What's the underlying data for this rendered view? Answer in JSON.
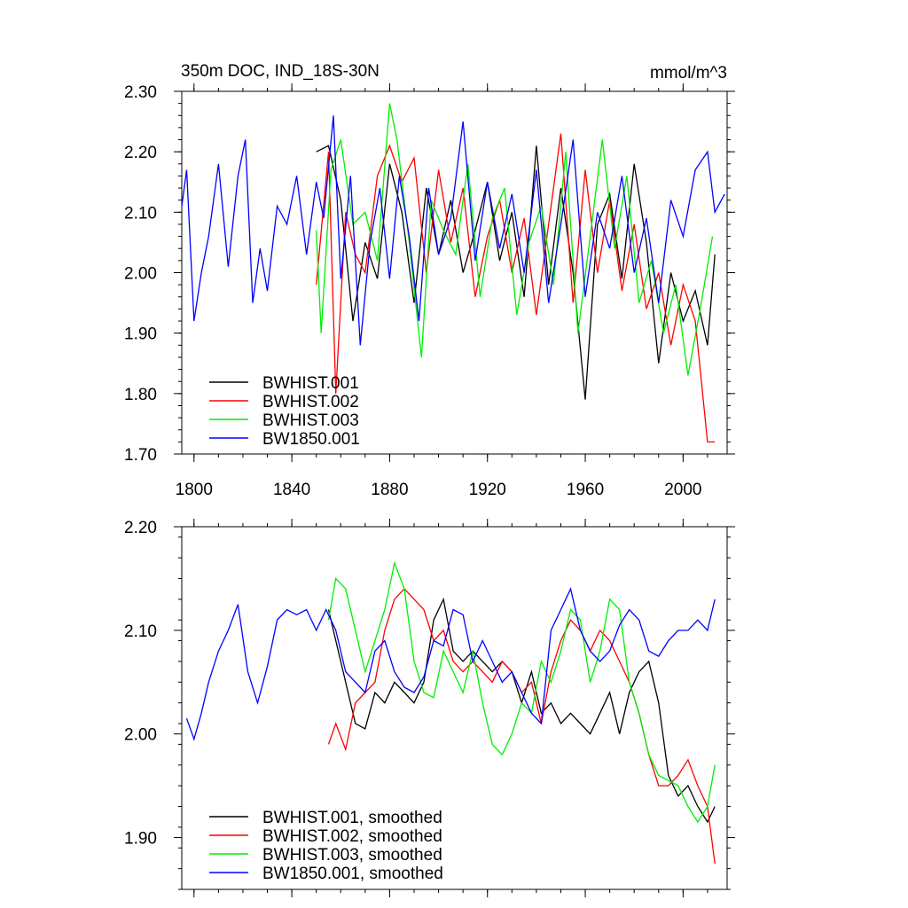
{
  "chart_data": [
    {
      "type": "line",
      "title": "350m DOC, IND_18S-30N",
      "units": "mmol/m^3",
      "xlabel": "",
      "ylabel": "",
      "xlim": [
        1795,
        2018
      ],
      "ylim": [
        1.7,
        2.3
      ],
      "xticks": [
        1800,
        1840,
        1880,
        1920,
        1960,
        2000
      ],
      "xtick_labels": [
        "1800",
        "1840",
        "1880",
        "1920",
        "1960",
        "2000"
      ],
      "yticks": [
        1.7,
        1.8,
        1.9,
        2.0,
        2.1,
        2.2,
        2.3
      ],
      "ytick_labels": [
        "1.70",
        "1.80",
        "1.90",
        "2.00",
        "2.10",
        "2.20",
        "2.30"
      ],
      "legend_position": "bottom-left",
      "series": [
        {
          "name": "BWHIST.001",
          "color": "#000000",
          "x": [
            1850,
            1855,
            1860,
            1865,
            1870,
            1875,
            1880,
            1885,
            1890,
            1895,
            1900,
            1905,
            1910,
            1915,
            1920,
            1925,
            1930,
            1935,
            1940,
            1945,
            1950,
            1955,
            1960,
            1965,
            1970,
            1975,
            1980,
            1985,
            1990,
            1995,
            2000,
            2005,
            2010,
            2013
          ],
          "values": [
            2.2,
            2.21,
            2.12,
            1.92,
            2.05,
            1.99,
            2.18,
            2.1,
            1.95,
            2.14,
            2.03,
            2.12,
            2.0,
            2.07,
            2.15,
            2.02,
            2.1,
            1.96,
            2.21,
            1.98,
            2.14,
            2.0,
            1.79,
            2.08,
            2.13,
            1.99,
            2.18,
            2.05,
            1.85,
            2.0,
            1.92,
            1.97,
            1.88,
            2.03
          ]
        },
        {
          "name": "BWHIST.002",
          "color": "#ff0000",
          "x": [
            1850,
            1855,
            1858,
            1862,
            1866,
            1870,
            1875,
            1880,
            1885,
            1890,
            1895,
            1900,
            1905,
            1910,
            1915,
            1920,
            1925,
            1930,
            1935,
            1940,
            1945,
            1950,
            1955,
            1960,
            1965,
            1970,
            1975,
            1980,
            1985,
            1990,
            1995,
            2000,
            2005,
            2010,
            2013
          ],
          "values": [
            1.98,
            2.2,
            1.8,
            2.1,
            2.03,
            2.0,
            2.16,
            2.21,
            2.15,
            2.19,
            2.0,
            2.17,
            2.05,
            2.14,
            1.96,
            2.06,
            2.12,
            2.0,
            2.09,
            1.93,
            2.08,
            2.23,
            1.95,
            2.17,
            2.0,
            2.12,
            1.97,
            2.08,
            1.94,
            2.0,
            1.88,
            1.98,
            1.92,
            1.72,
            1.72
          ]
        },
        {
          "name": "BWHIST.003",
          "color": "#00ee00",
          "x": [
            1850,
            1852,
            1856,
            1860,
            1865,
            1870,
            1875,
            1880,
            1883,
            1888,
            1893,
            1897,
            1902,
            1907,
            1912,
            1917,
            1922,
            1927,
            1932,
            1937,
            1942,
            1947,
            1952,
            1957,
            1962,
            1967,
            1972,
            1977,
            1982,
            1987,
            1992,
            1997,
            2002,
            2007,
            2012
          ],
          "values": [
            2.07,
            1.9,
            2.17,
            2.22,
            2.08,
            2.1,
            2.02,
            2.28,
            2.22,
            2.05,
            1.86,
            2.12,
            2.07,
            2.03,
            2.18,
            1.96,
            2.09,
            2.14,
            1.93,
            2.05,
            2.11,
            1.98,
            2.2,
            1.9,
            2.06,
            2.22,
            2.04,
            2.16,
            1.95,
            2.02,
            1.9,
            1.98,
            1.83,
            1.94,
            2.06
          ]
        },
        {
          "name": "BW1850.001",
          "color": "#0000ff",
          "x": [
            1795,
            1797,
            1800,
            1803,
            1806,
            1810,
            1814,
            1818,
            1821,
            1824,
            1827,
            1830,
            1834,
            1838,
            1842,
            1846,
            1850,
            1853,
            1857,
            1860,
            1864,
            1868,
            1872,
            1876,
            1880,
            1884,
            1888,
            1892,
            1896,
            1900,
            1905,
            1910,
            1915,
            1920,
            1925,
            1930,
            1935,
            1940,
            1945,
            1950,
            1955,
            1960,
            1965,
            1970,
            1975,
            1980,
            1985,
            1990,
            1995,
            2000,
            2005,
            2010,
            2013,
            2017
          ],
          "values": [
            2.11,
            2.17,
            1.92,
            2.0,
            2.06,
            2.18,
            2.01,
            2.16,
            2.22,
            1.95,
            2.04,
            1.97,
            2.11,
            2.08,
            2.16,
            2.03,
            2.15,
            2.09,
            2.26,
            1.99,
            2.16,
            1.88,
            2.05,
            2.14,
            1.99,
            2.16,
            2.06,
            1.92,
            2.14,
            2.03,
            2.09,
            2.25,
            2.02,
            2.15,
            2.04,
            2.13,
            2.0,
            2.17,
            1.95,
            2.08,
            2.22,
            1.96,
            2.1,
            2.04,
            2.16,
            2.0,
            2.09,
            1.95,
            2.12,
            2.06,
            2.17,
            2.2,
            2.1,
            2.13
          ]
        }
      ]
    },
    {
      "type": "line",
      "title": "",
      "xlabel": "",
      "ylabel": "",
      "xlim": [
        1795,
        2018
      ],
      "ylim": [
        1.85,
        2.2
      ],
      "xticks": [
        1800,
        1840,
        1880,
        1920,
        1960,
        2000
      ],
      "xtick_labels": [
        "",
        "",
        "",
        "",
        "",
        ""
      ],
      "yticks": [
        1.9,
        2.0,
        2.1,
        2.2
      ],
      "ytick_labels": [
        "1.90",
        "2.00",
        "2.10",
        "2.20"
      ],
      "legend_position": "bottom-left",
      "series": [
        {
          "name": "BWHIST.001, smoothed",
          "color": "#000000",
          "x": [
            1855,
            1858,
            1862,
            1866,
            1870,
            1874,
            1878,
            1882,
            1886,
            1890,
            1894,
            1898,
            1902,
            1906,
            1910,
            1914,
            1918,
            1922,
            1926,
            1930,
            1934,
            1938,
            1942,
            1946,
            1950,
            1954,
            1958,
            1962,
            1966,
            1970,
            1974,
            1978,
            1982,
            1986,
            1990,
            1994,
            1998,
            2002,
            2006,
            2010,
            2013
          ],
          "values": [
            2.12,
            2.09,
            2.05,
            2.01,
            2.005,
            2.04,
            2.03,
            2.05,
            2.04,
            2.03,
            2.05,
            2.11,
            2.13,
            2.08,
            2.07,
            2.08,
            2.07,
            2.06,
            2.07,
            2.06,
            2.03,
            2.06,
            2.02,
            2.03,
            2.01,
            2.02,
            2.01,
            2.0,
            2.02,
            2.04,
            2.0,
            2.04,
            2.06,
            2.07,
            2.03,
            1.96,
            1.94,
            1.95,
            1.93,
            1.915,
            1.93
          ]
        },
        {
          "name": "BWHIST.002, smoothed",
          "color": "#ff0000",
          "x": [
            1855,
            1858,
            1862,
            1866,
            1870,
            1874,
            1878,
            1882,
            1886,
            1890,
            1894,
            1898,
            1902,
            1906,
            1910,
            1914,
            1918,
            1922,
            1926,
            1930,
            1934,
            1938,
            1942,
            1946,
            1950,
            1954,
            1958,
            1962,
            1966,
            1970,
            1974,
            1978,
            1982,
            1986,
            1990,
            1994,
            1998,
            2002,
            2006,
            2010,
            2013
          ],
          "values": [
            1.99,
            2.01,
            1.985,
            2.03,
            2.04,
            2.05,
            2.1,
            2.13,
            2.14,
            2.13,
            2.12,
            2.09,
            2.1,
            2.07,
            2.06,
            2.07,
            2.06,
            2.05,
            2.07,
            2.06,
            2.04,
            2.05,
            2.01,
            2.06,
            2.09,
            2.11,
            2.1,
            2.08,
            2.1,
            2.09,
            2.07,
            2.05,
            2.02,
            1.98,
            1.95,
            1.95,
            1.96,
            1.975,
            1.95,
            1.93,
            1.875
          ]
        },
        {
          "name": "BWHIST.003, smoothed",
          "color": "#00ee00",
          "x": [
            1855,
            1858,
            1862,
            1866,
            1870,
            1874,
            1878,
            1882,
            1886,
            1890,
            1894,
            1898,
            1902,
            1906,
            1910,
            1914,
            1918,
            1922,
            1926,
            1930,
            1934,
            1938,
            1942,
            1946,
            1950,
            1954,
            1958,
            1962,
            1966,
            1970,
            1974,
            1978,
            1982,
            1986,
            1990,
            1994,
            1998,
            2002,
            2006,
            2010,
            2013
          ],
          "values": [
            2.11,
            2.15,
            2.14,
            2.1,
            2.06,
            2.09,
            2.12,
            2.165,
            2.14,
            2.07,
            2.04,
            2.035,
            2.08,
            2.06,
            2.04,
            2.08,
            2.03,
            1.99,
            1.98,
            2.0,
            2.03,
            2.02,
            2.07,
            2.05,
            2.08,
            2.12,
            2.11,
            2.05,
            2.08,
            2.13,
            2.12,
            2.05,
            2.02,
            1.98,
            1.96,
            1.955,
            1.95,
            1.93,
            1.915,
            1.93,
            1.97
          ]
        },
        {
          "name": "BW1850.001, smoothed",
          "color": "#0000ff",
          "x": [
            1797,
            1800,
            1803,
            1806,
            1810,
            1814,
            1818,
            1822,
            1826,
            1830,
            1834,
            1838,
            1842,
            1846,
            1850,
            1854,
            1858,
            1862,
            1866,
            1870,
            1874,
            1878,
            1882,
            1886,
            1890,
            1894,
            1898,
            1902,
            1906,
            1910,
            1914,
            1918,
            1922,
            1926,
            1930,
            1934,
            1938,
            1942,
            1946,
            1950,
            1954,
            1958,
            1962,
            1966,
            1970,
            1974,
            1978,
            1982,
            1986,
            1990,
            1994,
            1998,
            2002,
            2006,
            2010,
            2013
          ],
          "values": [
            2.015,
            1.995,
            2.02,
            2.05,
            2.08,
            2.1,
            2.125,
            2.06,
            2.03,
            2.065,
            2.11,
            2.12,
            2.115,
            2.12,
            2.1,
            2.12,
            2.1,
            2.06,
            2.05,
            2.04,
            2.08,
            2.09,
            2.06,
            2.045,
            2.04,
            2.055,
            2.09,
            2.085,
            2.12,
            2.115,
            2.07,
            2.09,
            2.07,
            2.05,
            2.06,
            2.04,
            2.02,
            2.01,
            2.1,
            2.12,
            2.14,
            2.1,
            2.08,
            2.07,
            2.08,
            2.105,
            2.12,
            2.11,
            2.08,
            2.075,
            2.09,
            2.1,
            2.1,
            2.11,
            2.1,
            2.13
          ]
        }
      ]
    }
  ]
}
